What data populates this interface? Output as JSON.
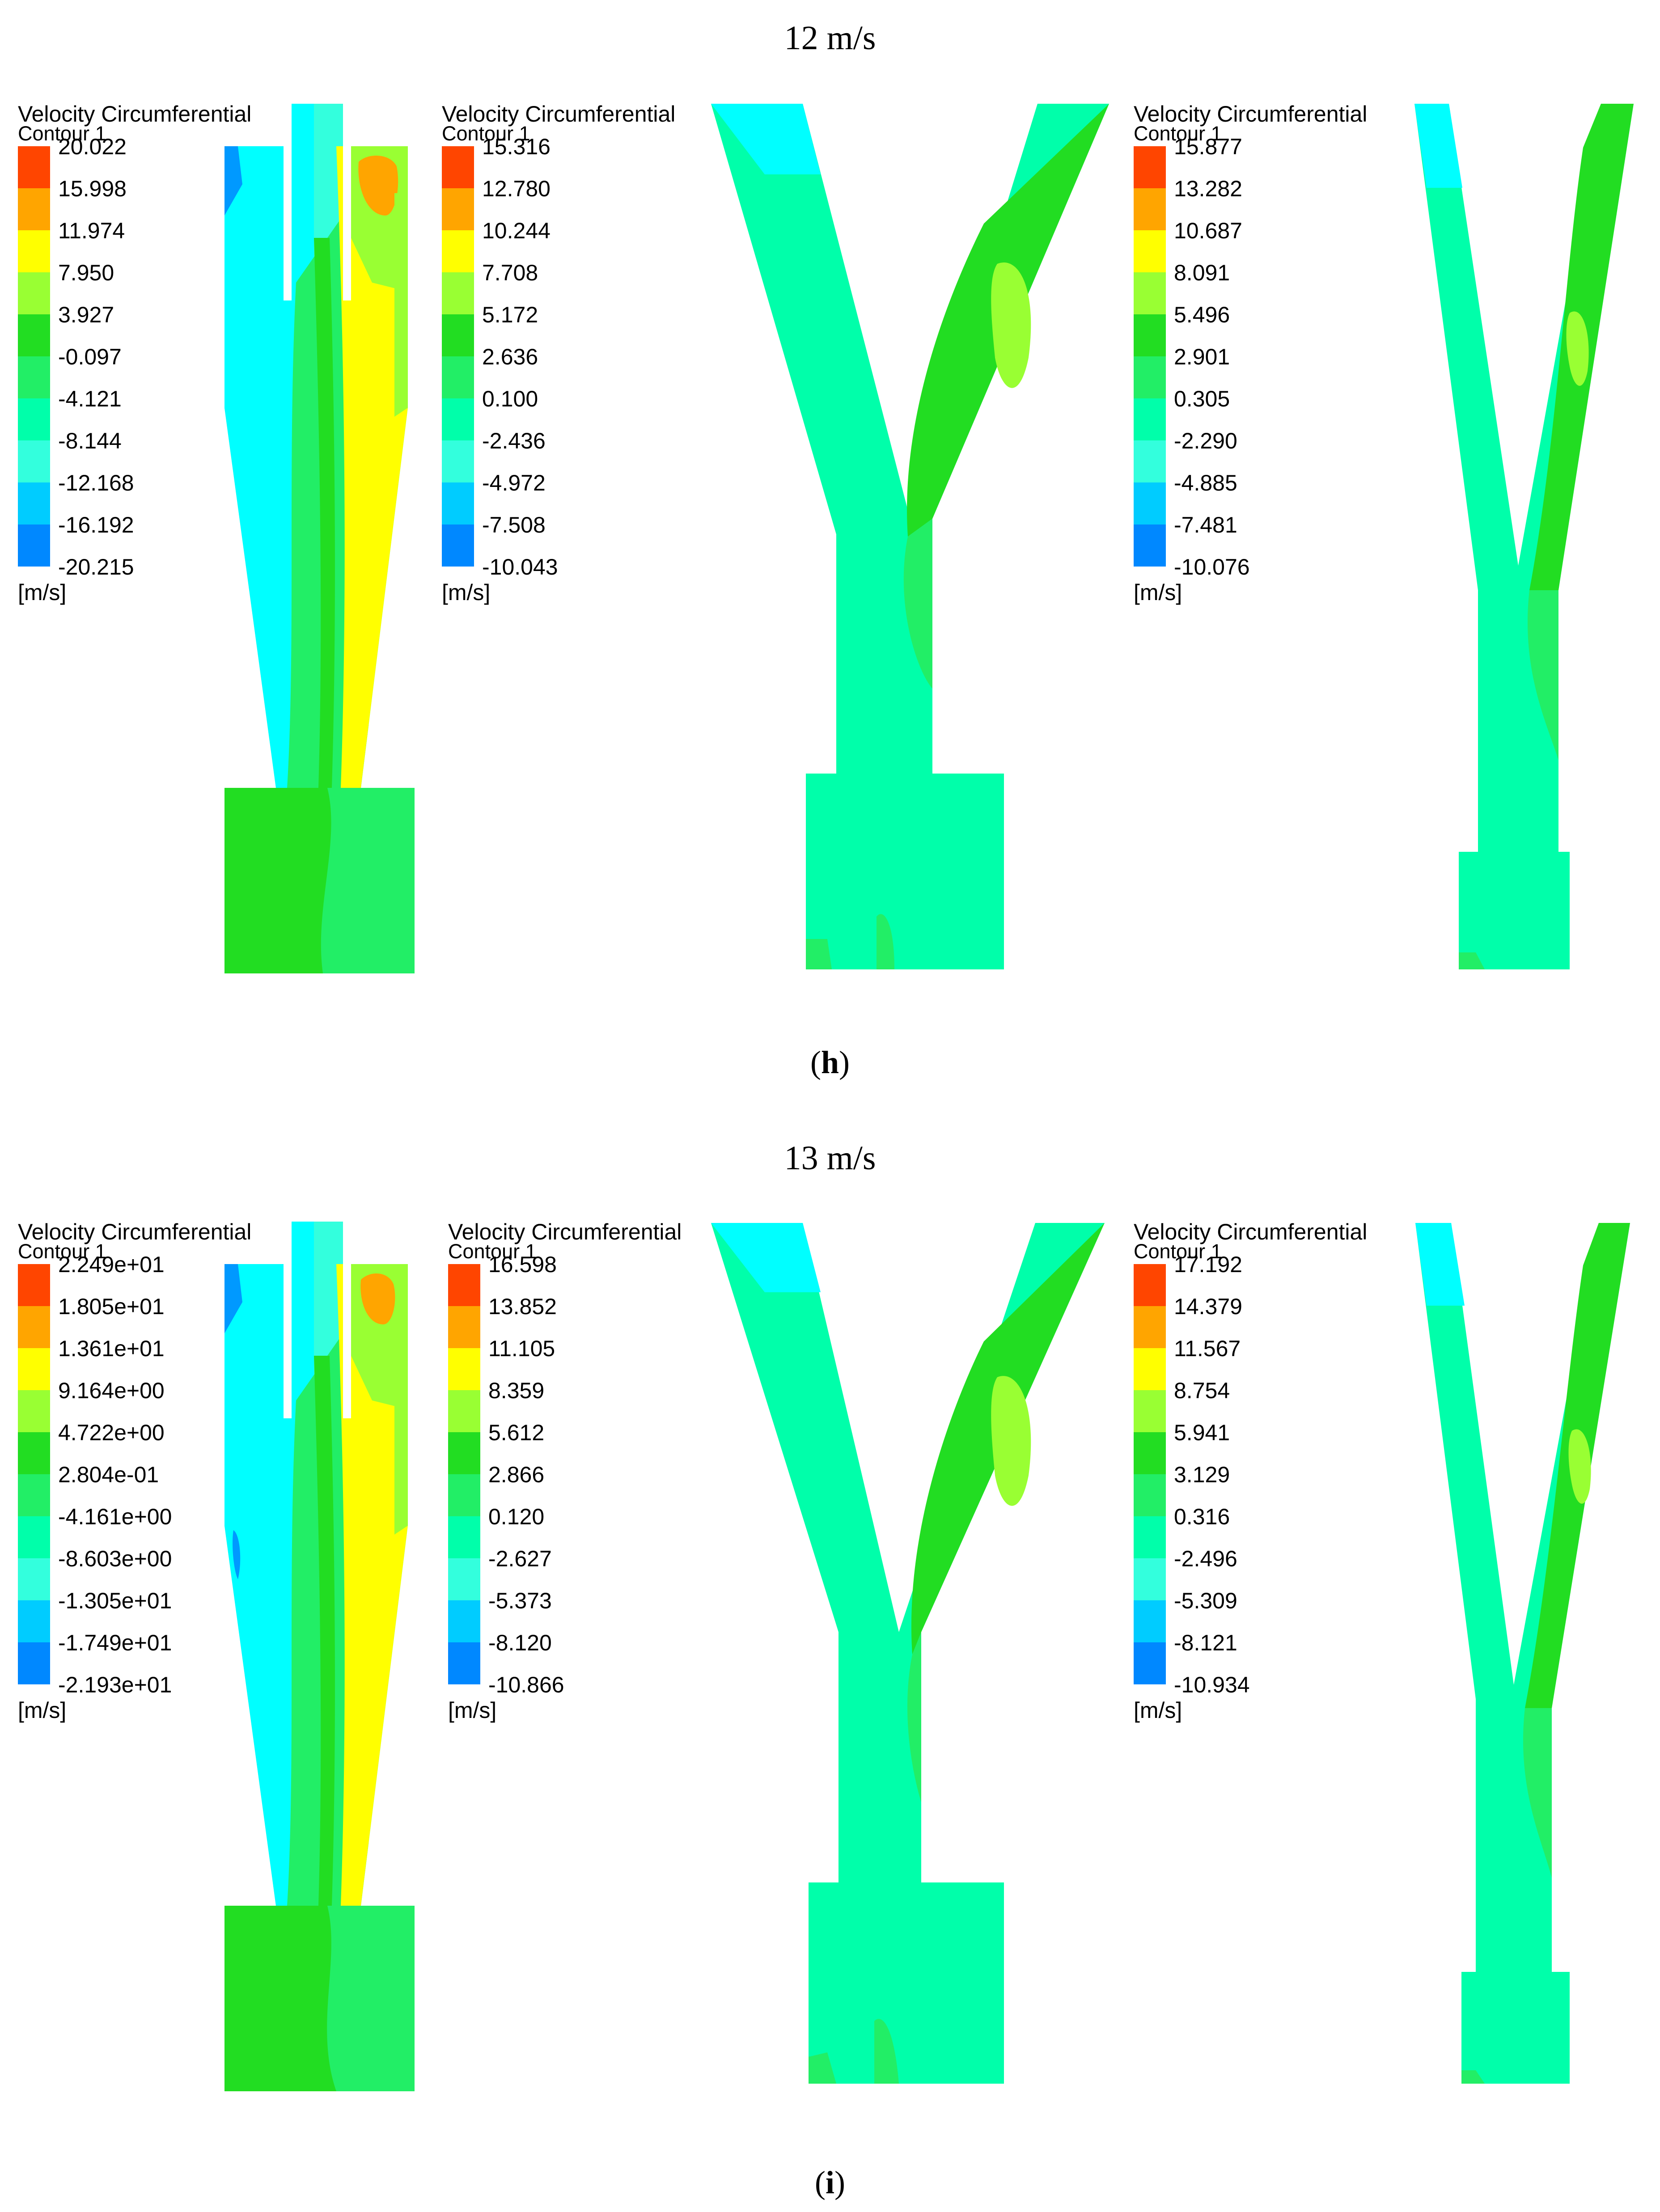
{
  "panels": [
    {
      "speed_title": "12 m/s",
      "caption_letter": "h",
      "legends": [
        {
          "title_line1": "Velocity Circumferential",
          "title_line2": "Contour 1",
          "unit": "[m/s]",
          "levels": [
            "20.022",
            "15.998",
            "11.974",
            "7.950",
            "3.927",
            "-0.097",
            "-4.121",
            "-8.144",
            "-12.168",
            "-16.192",
            "-20.215"
          ]
        },
        {
          "title_line1": "Velocity Circumferential",
          "title_line2": "Contour 1",
          "unit": "[m/s]",
          "levels": [
            "15.316",
            "12.780",
            "10.244",
            "7.708",
            "5.172",
            "2.636",
            "0.100",
            "-2.436",
            "-4.972",
            "-7.508",
            "-10.043"
          ]
        },
        {
          "title_line1": "Velocity Circumferential",
          "title_line2": "Contour 1",
          "unit": "[m/s]",
          "levels": [
            "15.877",
            "13.282",
            "10.687",
            "8.091",
            "5.496",
            "2.901",
            "0.305",
            "-2.290",
            "-4.885",
            "-7.481",
            "-10.076"
          ]
        }
      ]
    },
    {
      "speed_title": "13 m/s",
      "caption_letter": "i",
      "legends": [
        {
          "title_line1": "Velocity Circumferential",
          "title_line2": "Contour 1",
          "unit": "[m/s]",
          "levels": [
            "2.249e+01",
            "1.805e+01",
            "1.361e+01",
            "9.164e+00",
            "4.722e+00",
            "2.804e-01",
            "-4.161e+00",
            "-8.603e+00",
            "-1.305e+01",
            "-1.749e+01",
            "-2.193e+01"
          ]
        },
        {
          "title_line1": "Velocity Circumferential",
          "title_line2": "Contour 1",
          "unit": "[m/s]",
          "levels": [
            "16.598",
            "13.852",
            "11.105",
            "8.359",
            "5.612",
            "2.866",
            "0.120",
            "-2.627",
            "-5.373",
            "-8.120",
            "-10.866"
          ]
        },
        {
          "title_line1": "Velocity Circumferential",
          "title_line2": "Contour 1",
          "unit": "[m/s]",
          "levels": [
            "17.192",
            "14.379",
            "11.567",
            "8.754",
            "5.941",
            "3.129",
            "0.316",
            "-2.496",
            "-5.309",
            "-8.121",
            "-10.934"
          ]
        }
      ]
    }
  ],
  "colors": {
    "band_0": "#FF4500",
    "band_1": "#FFA500",
    "band_2": "#FFFF00",
    "band_3": "#99FF33",
    "band_4": "#22DD22",
    "band_5": "#22EE66",
    "band_6": "#00FFAA",
    "band_7": "#33FFDD",
    "band_8": "#00CCFF",
    "band_9": "#0088FF",
    "band_10": "#0022EE"
  }
}
